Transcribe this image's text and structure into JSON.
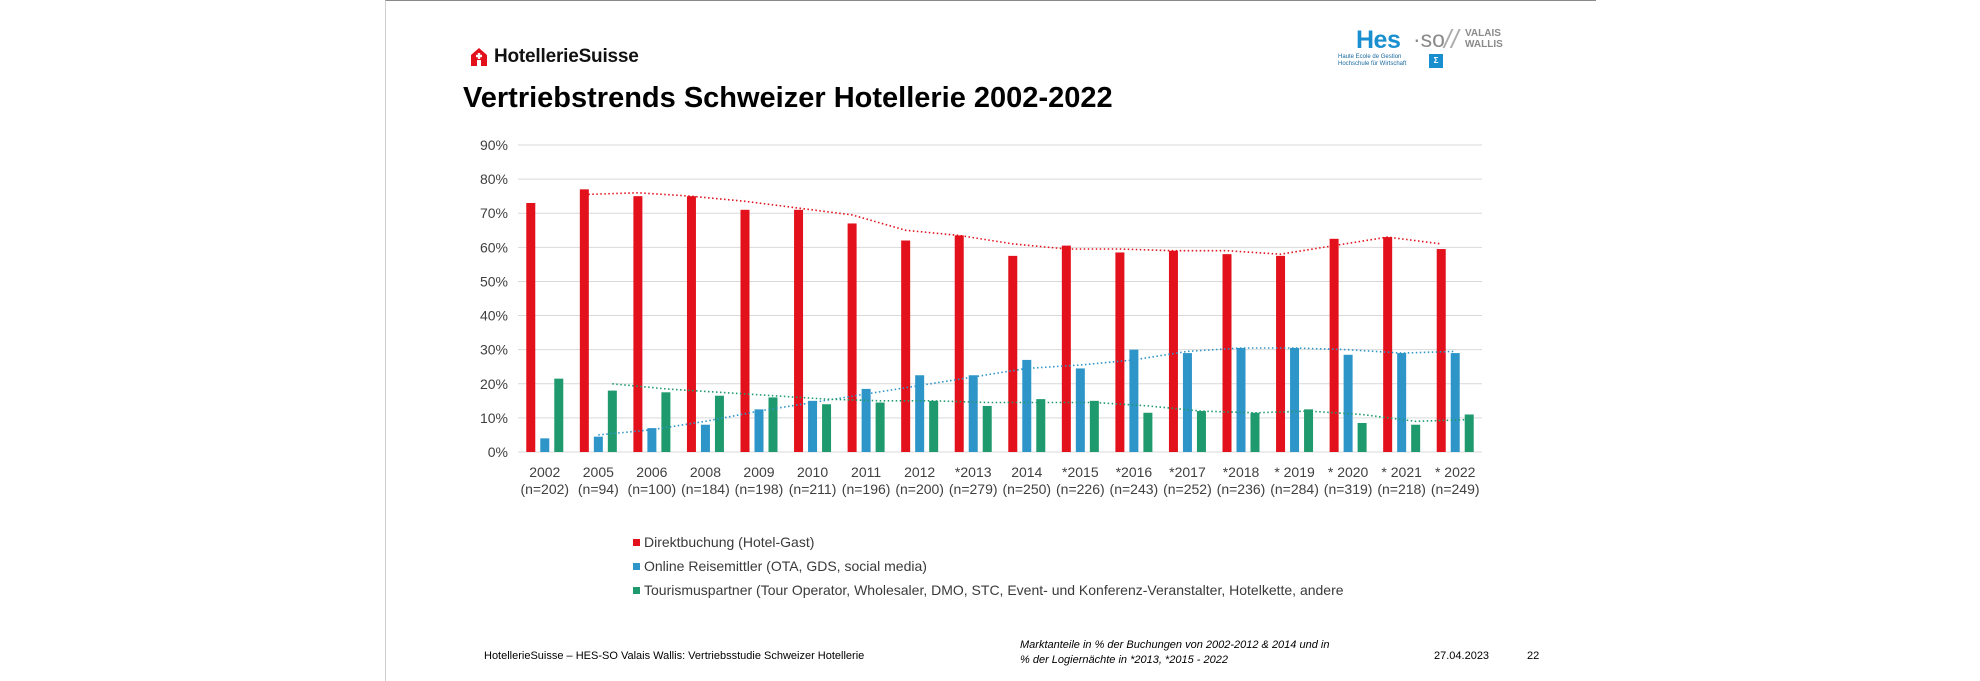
{
  "brand": {
    "name": "HotellerieSuisse"
  },
  "hes": {
    "main": "Hes",
    "so": "·so",
    "vw_line1": "VALAIS",
    "vw_line2": "WALLIS",
    "sub_line1": "Haute Ecole de Gestion",
    "sub_line2": "Hochschule für Wirtschaft"
  },
  "title": "Vertriebstrends Schweizer Hotellerie 2002-2022",
  "colors": {
    "red": "#e3111b",
    "blue": "#2e95c9",
    "green": "#1e9a6e"
  },
  "chart_data": {
    "type": "bar",
    "categories": [
      [
        "2002",
        "(n=202)"
      ],
      [
        "2005",
        "(n=94)"
      ],
      [
        "2006",
        "(n=100)"
      ],
      [
        "2008",
        "(n=184)"
      ],
      [
        "2009",
        "(n=198)"
      ],
      [
        "2010",
        "(n=211)"
      ],
      [
        "2011",
        "(n=196)"
      ],
      [
        "2012",
        "(n=200)"
      ],
      [
        "*2013",
        "(n=279)"
      ],
      [
        "2014",
        "(n=250)"
      ],
      [
        "*2015",
        "(n=226)"
      ],
      [
        "*2016",
        "(n=243)"
      ],
      [
        "*2017",
        "(n=252)"
      ],
      [
        "*2018",
        "(n=236)"
      ],
      [
        "* 2019",
        "(n=284)"
      ],
      [
        "* 2020",
        "(n=319)"
      ],
      [
        "* 2021",
        "(n=218)"
      ],
      [
        "* 2022",
        "(n=249)"
      ]
    ],
    "series": [
      {
        "name": "Direktbuchung (Hotel-Gast)",
        "color": "#e3111b",
        "values": [
          73,
          77,
          75,
          75,
          71,
          71,
          67,
          62,
          63.5,
          57.5,
          60.5,
          58.5,
          59,
          58,
          57.5,
          62.5,
          63,
          59.5
        ]
      },
      {
        "name": "Online Reisemittler (OTA, GDS, social media)",
        "color": "#2e95c9",
        "values": [
          4,
          4.5,
          7,
          8,
          12.5,
          15,
          18.5,
          22.5,
          22.5,
          27,
          24.5,
          30,
          29,
          30.5,
          30.5,
          28.5,
          29,
          29
        ]
      },
      {
        "name": "Tourismuspartner (Tour Operator, Wholesaler, DMO, STC, Event- und Konferenz-Veranstalter, Hotelkette, andere",
        "color": "#1e9a6e",
        "values": [
          21.5,
          18,
          17.5,
          16.5,
          16,
          14,
          14.5,
          15,
          13.5,
          15.5,
          15,
          11.5,
          12,
          11.5,
          12.5,
          8.5,
          8,
          11
        ]
      }
    ],
    "trendlines": [
      {
        "series": 0,
        "values": [
          null,
          75.5,
          76,
          75,
          73.5,
          71.5,
          69.5,
          65,
          63.5,
          61,
          59.5,
          59.5,
          59,
          59,
          58,
          60.5,
          63,
          61
        ]
      },
      {
        "series": 1,
        "values": [
          null,
          5,
          6.5,
          9,
          12,
          14.5,
          17,
          19.5,
          22,
          24.5,
          25.5,
          27,
          29.5,
          30.5,
          30.5,
          30,
          29,
          29.5
        ]
      },
      {
        "series": 2,
        "values": [
          null,
          20,
          18.5,
          17.5,
          16.5,
          15.5,
          15,
          15,
          14.5,
          14.5,
          14.5,
          13.5,
          12,
          11.5,
          12,
          11,
          9,
          9.5
        ]
      }
    ],
    "y_ticks": [
      "0%",
      "10%",
      "20%",
      "30%",
      "40%",
      "50%",
      "60%",
      "70%",
      "80%",
      "90%"
    ],
    "ylim": [
      0,
      90
    ],
    "grid": true,
    "legend": "bottom"
  },
  "footer": {
    "left": "HotellerieSuisse – HES-SO Valais Wallis: Vertriebsstudie Schweizer Hotellerie",
    "note_line1": "Marktanteile in %  der Buchungen von 2002-2012 & 2014 und in",
    "note_line2": "% der Logiernächte in *2013, *2015  - 2022",
    "date": "27.04.2023",
    "page": "22"
  }
}
